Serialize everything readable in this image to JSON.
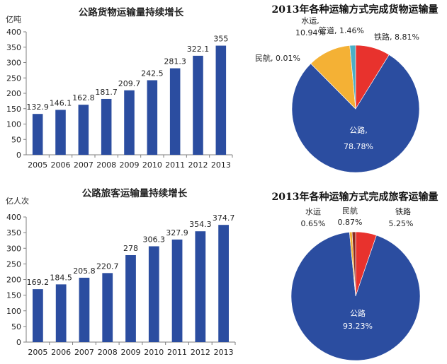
{
  "colors": {
    "bar": "#2B4DA0",
    "axis": "#7F7F7F",
    "text": "#222222",
    "pie": {
      "公路": "#2B4DA0",
      "铁路": "#E8322D",
      "水运": "#F4B135",
      "管道": "#4BAFC6",
      "民航": "#8A2A1E"
    }
  },
  "chart_data": [
    {
      "type": "bar",
      "title": "公路货物运输量持续增长",
      "ylabel": "亿吨",
      "categories": [
        "2005",
        "2006",
        "2007",
        "2008",
        "2009",
        "2010",
        "2011",
        "2012",
        "2013"
      ],
      "values": [
        132.9,
        146.1,
        162.8,
        181.7,
        209.7,
        242.5,
        281.3,
        322.1,
        355
      ],
      "value_labels": [
        "132.9",
        "146.1",
        "162.8",
        "181.7",
        "209.7",
        "242.5",
        "281.3",
        "322.1",
        "355"
      ],
      "ylim": [
        0,
        400
      ],
      "yticks": [
        "0",
        "50",
        "100",
        "150",
        "200",
        "250",
        "300",
        "350",
        "400"
      ],
      "grid": false
    },
    {
      "type": "pie",
      "title": "2013年各种运输方式完成货物运输量",
      "slices": [
        {
          "name": "公路",
          "value": 78.78,
          "label": "公路,",
          "pct_label": "78.78%"
        },
        {
          "name": "铁路",
          "value": 8.81,
          "label": "铁路, 8.81%"
        },
        {
          "name": "管道",
          "value": 1.46,
          "label": "管道, 1.46%"
        },
        {
          "name": "水运",
          "value": 10.94,
          "label": "水运,",
          "pct_label": "10.94%"
        },
        {
          "name": "民航",
          "value": 0.01,
          "label": "民航, 0.01%"
        }
      ]
    },
    {
      "type": "bar",
      "title": "公路旅客运输量持续增长",
      "ylabel": "亿人次",
      "categories": [
        "2005",
        "2006",
        "2007",
        "2008",
        "2009",
        "2010",
        "2011",
        "2012",
        "2013"
      ],
      "values": [
        169.2,
        184.5,
        205.8,
        220.7,
        278,
        306.3,
        327.9,
        354.3,
        374.7
      ],
      "value_labels": [
        "169.2",
        "184.5",
        "205.8",
        "220.7",
        "278",
        "306.3",
        "327.9",
        "354.3",
        "374.7"
      ],
      "ylim": [
        0,
        400
      ],
      "yticks": [
        "0",
        "50",
        "100",
        "150",
        "200",
        "250",
        "300",
        "350",
        "400"
      ],
      "grid": false
    },
    {
      "type": "pie",
      "title": "2013年各种运输方式完成旅客运输量",
      "slices": [
        {
          "name": "公路",
          "value": 93.23,
          "label": "公路",
          "pct_label": "93.23%"
        },
        {
          "name": "水运",
          "value": 0.65,
          "label": "水运",
          "pct_label": "0.65%"
        },
        {
          "name": "民航",
          "value": 0.87,
          "label": "民航",
          "pct_label": "0.87%"
        },
        {
          "name": "铁路",
          "value": 5.25,
          "label": "铁路",
          "pct_label": "5.25%"
        }
      ]
    }
  ]
}
